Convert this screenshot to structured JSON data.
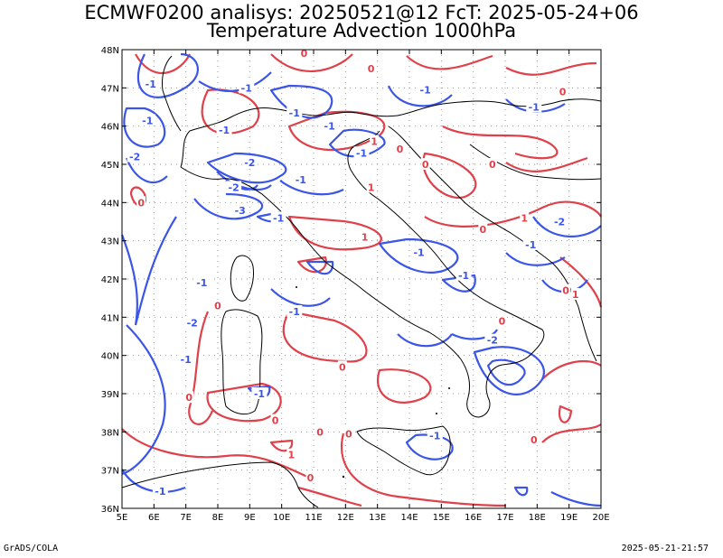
{
  "title": {
    "line1": "ECMWF0200 analisys: 20250521@12 FcT: 2025-05-24+06",
    "line2": "Temperature Advection 1000hPa"
  },
  "footer": {
    "left": "GrADS/COLA",
    "right": "2025-05-21-21:57"
  },
  "map": {
    "lon_range": [
      5,
      20
    ],
    "lat_range": [
      36,
      48
    ],
    "lon_labels": [
      "5E",
      "6E",
      "7E",
      "8E",
      "9E",
      "10E",
      "11E",
      "12E",
      "13E",
      "14E",
      "15E",
      "16E",
      "17E",
      "18E",
      "19E",
      "20E"
    ],
    "lat_labels": [
      "36N",
      "37N",
      "38N",
      "39N",
      "40N",
      "41N",
      "42N",
      "43N",
      "44N",
      "45N",
      "46N",
      "47N",
      "48N"
    ],
    "grid": "dotted",
    "colors": {
      "positive": "#e0404a",
      "negative": "#3a55e8",
      "coast": "#000000",
      "grid": "#999999"
    },
    "contour_labels": [
      {
        "text": "0",
        "lon": 10.7,
        "lat": 47.9,
        "sign": "pos"
      },
      {
        "text": "0",
        "lon": 12.8,
        "lat": 47.5,
        "sign": "pos"
      },
      {
        "text": "-1",
        "lon": 5.9,
        "lat": 47.1,
        "sign": "neg"
      },
      {
        "text": "-1",
        "lon": 8.9,
        "lat": 47.0,
        "sign": "neg"
      },
      {
        "text": "-1",
        "lon": 14.5,
        "lat": 46.95,
        "sign": "neg"
      },
      {
        "text": "-1",
        "lon": 17.9,
        "lat": 46.5,
        "sign": "neg"
      },
      {
        "text": "0",
        "lon": 18.8,
        "lat": 46.9,
        "sign": "pos"
      },
      {
        "text": "-1",
        "lon": 5.8,
        "lat": 46.15,
        "sign": "neg"
      },
      {
        "text": "-1",
        "lon": 8.2,
        "lat": 45.9,
        "sign": "neg"
      },
      {
        "text": "-1",
        "lon": 10.4,
        "lat": 46.35,
        "sign": "neg"
      },
      {
        "text": "-1",
        "lon": 11.5,
        "lat": 46.0,
        "sign": "neg"
      },
      {
        "text": "1",
        "lon": 12.9,
        "lat": 45.6,
        "sign": "pos"
      },
      {
        "text": "0",
        "lon": 13.7,
        "lat": 45.4,
        "sign": "pos"
      },
      {
        "text": "-2",
        "lon": 5.4,
        "lat": 45.2,
        "sign": "neg"
      },
      {
        "text": "-1",
        "lon": 12.5,
        "lat": 45.3,
        "sign": "neg"
      },
      {
        "text": "-2",
        "lon": 9.0,
        "lat": 45.05,
        "sign": "neg"
      },
      {
        "text": "-1",
        "lon": 10.6,
        "lat": 44.6,
        "sign": "neg"
      },
      {
        "text": "1",
        "lon": 12.8,
        "lat": 44.4,
        "sign": "pos"
      },
      {
        "text": "0",
        "lon": 14.5,
        "lat": 45.0,
        "sign": "pos"
      },
      {
        "text": "0",
        "lon": 16.6,
        "lat": 45.0,
        "sign": "pos"
      },
      {
        "text": "0",
        "lon": 5.6,
        "lat": 44.0,
        "sign": "pos"
      },
      {
        "text": "-2",
        "lon": 8.5,
        "lat": 44.4,
        "sign": "neg"
      },
      {
        "text": "-3",
        "lon": 8.7,
        "lat": 43.8,
        "sign": "neg"
      },
      {
        "text": "-1",
        "lon": 9.9,
        "lat": 43.6,
        "sign": "neg"
      },
      {
        "text": "-2",
        "lon": 18.7,
        "lat": 43.5,
        "sign": "neg"
      },
      {
        "text": "1",
        "lon": 17.6,
        "lat": 43.6,
        "sign": "pos"
      },
      {
        "text": "0",
        "lon": 16.3,
        "lat": 43.3,
        "sign": "pos"
      },
      {
        "text": "-1",
        "lon": 17.8,
        "lat": 42.9,
        "sign": "neg"
      },
      {
        "text": "-1",
        "lon": 14.3,
        "lat": 42.7,
        "sign": "neg"
      },
      {
        "text": "-1",
        "lon": 15.7,
        "lat": 42.1,
        "sign": "neg"
      },
      {
        "text": "1",
        "lon": 12.6,
        "lat": 43.1,
        "sign": "pos"
      },
      {
        "text": "-1",
        "lon": 7.5,
        "lat": 41.9,
        "sign": "neg"
      },
      {
        "text": "-1",
        "lon": 10.4,
        "lat": 41.15,
        "sign": "neg"
      },
      {
        "text": "0",
        "lon": 8.0,
        "lat": 41.3,
        "sign": "pos"
      },
      {
        "text": "1",
        "lon": 19.2,
        "lat": 41.6,
        "sign": "pos"
      },
      {
        "text": "0",
        "lon": 18.9,
        "lat": 41.7,
        "sign": "pos"
      },
      {
        "text": "-2",
        "lon": 7.2,
        "lat": 40.85,
        "sign": "neg"
      },
      {
        "text": "-1",
        "lon": 7.0,
        "lat": 39.9,
        "sign": "neg"
      },
      {
        "text": "-2",
        "lon": 16.6,
        "lat": 40.4,
        "sign": "neg"
      },
      {
        "text": "0",
        "lon": 16.9,
        "lat": 40.9,
        "sign": "pos"
      },
      {
        "text": "0",
        "lon": 11.9,
        "lat": 39.7,
        "sign": "pos"
      },
      {
        "text": "-1",
        "lon": 9.3,
        "lat": 39.0,
        "sign": "neg"
      },
      {
        "text": "0",
        "lon": 7.1,
        "lat": 38.9,
        "sign": "pos"
      },
      {
        "text": "0",
        "lon": 9.8,
        "lat": 38.3,
        "sign": "pos"
      },
      {
        "text": "0",
        "lon": 11.2,
        "lat": 38.0,
        "sign": "pos"
      },
      {
        "text": "-1",
        "lon": 14.8,
        "lat": 37.9,
        "sign": "neg"
      },
      {
        "text": "0",
        "lon": 17.9,
        "lat": 37.8,
        "sign": "pos"
      },
      {
        "text": "0",
        "lon": 12.1,
        "lat": 37.95,
        "sign": "pos"
      },
      {
        "text": "1",
        "lon": 10.3,
        "lat": 37.4,
        "sign": "pos"
      },
      {
        "text": "0",
        "lon": 10.9,
        "lat": 36.8,
        "sign": "pos"
      },
      {
        "text": "-1",
        "lon": 6.2,
        "lat": 36.45,
        "sign": "neg"
      }
    ]
  }
}
